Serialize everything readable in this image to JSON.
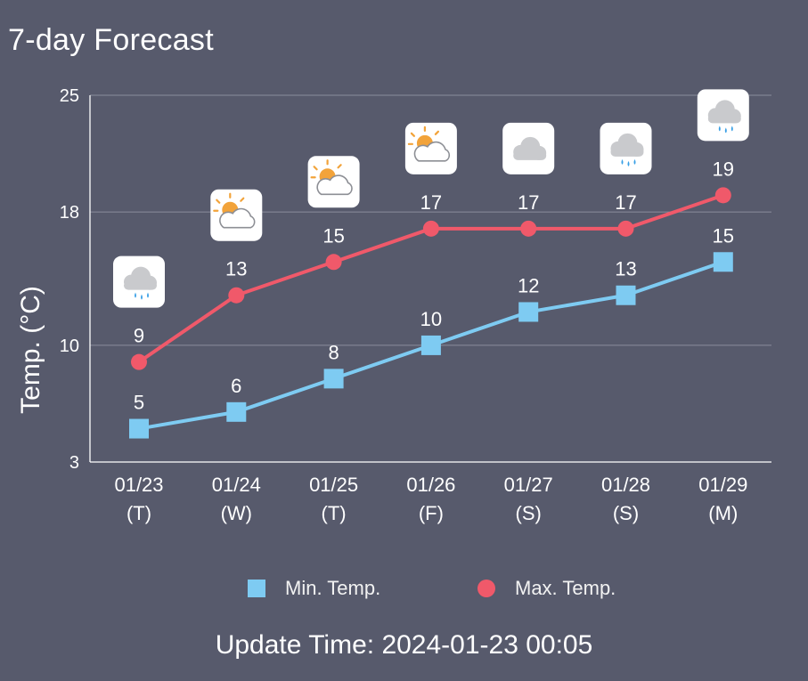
{
  "title": "7-day Forecast",
  "update_time": "Update Time: 2024-01-23 00:05",
  "colors": {
    "background": "#575a6c",
    "min_series": "#7ecbf2",
    "max_series": "#f0596a",
    "grid": "#8a8d9c"
  },
  "chart_data": {
    "type": "line",
    "ylabel": "Temp. (°C)",
    "xlabel": "",
    "ylim": [
      3,
      25
    ],
    "yticks": [
      3,
      10,
      18,
      25
    ],
    "grid": true,
    "legend": "bottom",
    "categories": [
      "01/23",
      "01/24",
      "01/25",
      "01/26",
      "01/27",
      "01/28",
      "01/29"
    ],
    "weekdays": [
      "(T)",
      "(W)",
      "(T)",
      "(F)",
      "(S)",
      "(S)",
      "(M)"
    ],
    "weather_icons": [
      "rain-cloud-icon",
      "partly-cloudy-icon",
      "partly-cloudy-icon",
      "partly-cloudy-icon",
      "cloud-icon",
      "rain-cloud-icon",
      "rain-cloud-icon"
    ],
    "series": [
      {
        "name": "Min. Temp.",
        "marker": "square",
        "color": "#7ecbf2",
        "values": [
          5,
          6,
          8,
          10,
          12,
          13,
          15
        ]
      },
      {
        "name": "Max. Temp.",
        "marker": "circle",
        "color": "#f0596a",
        "values": [
          9,
          13,
          15,
          17,
          17,
          17,
          19
        ]
      }
    ]
  }
}
